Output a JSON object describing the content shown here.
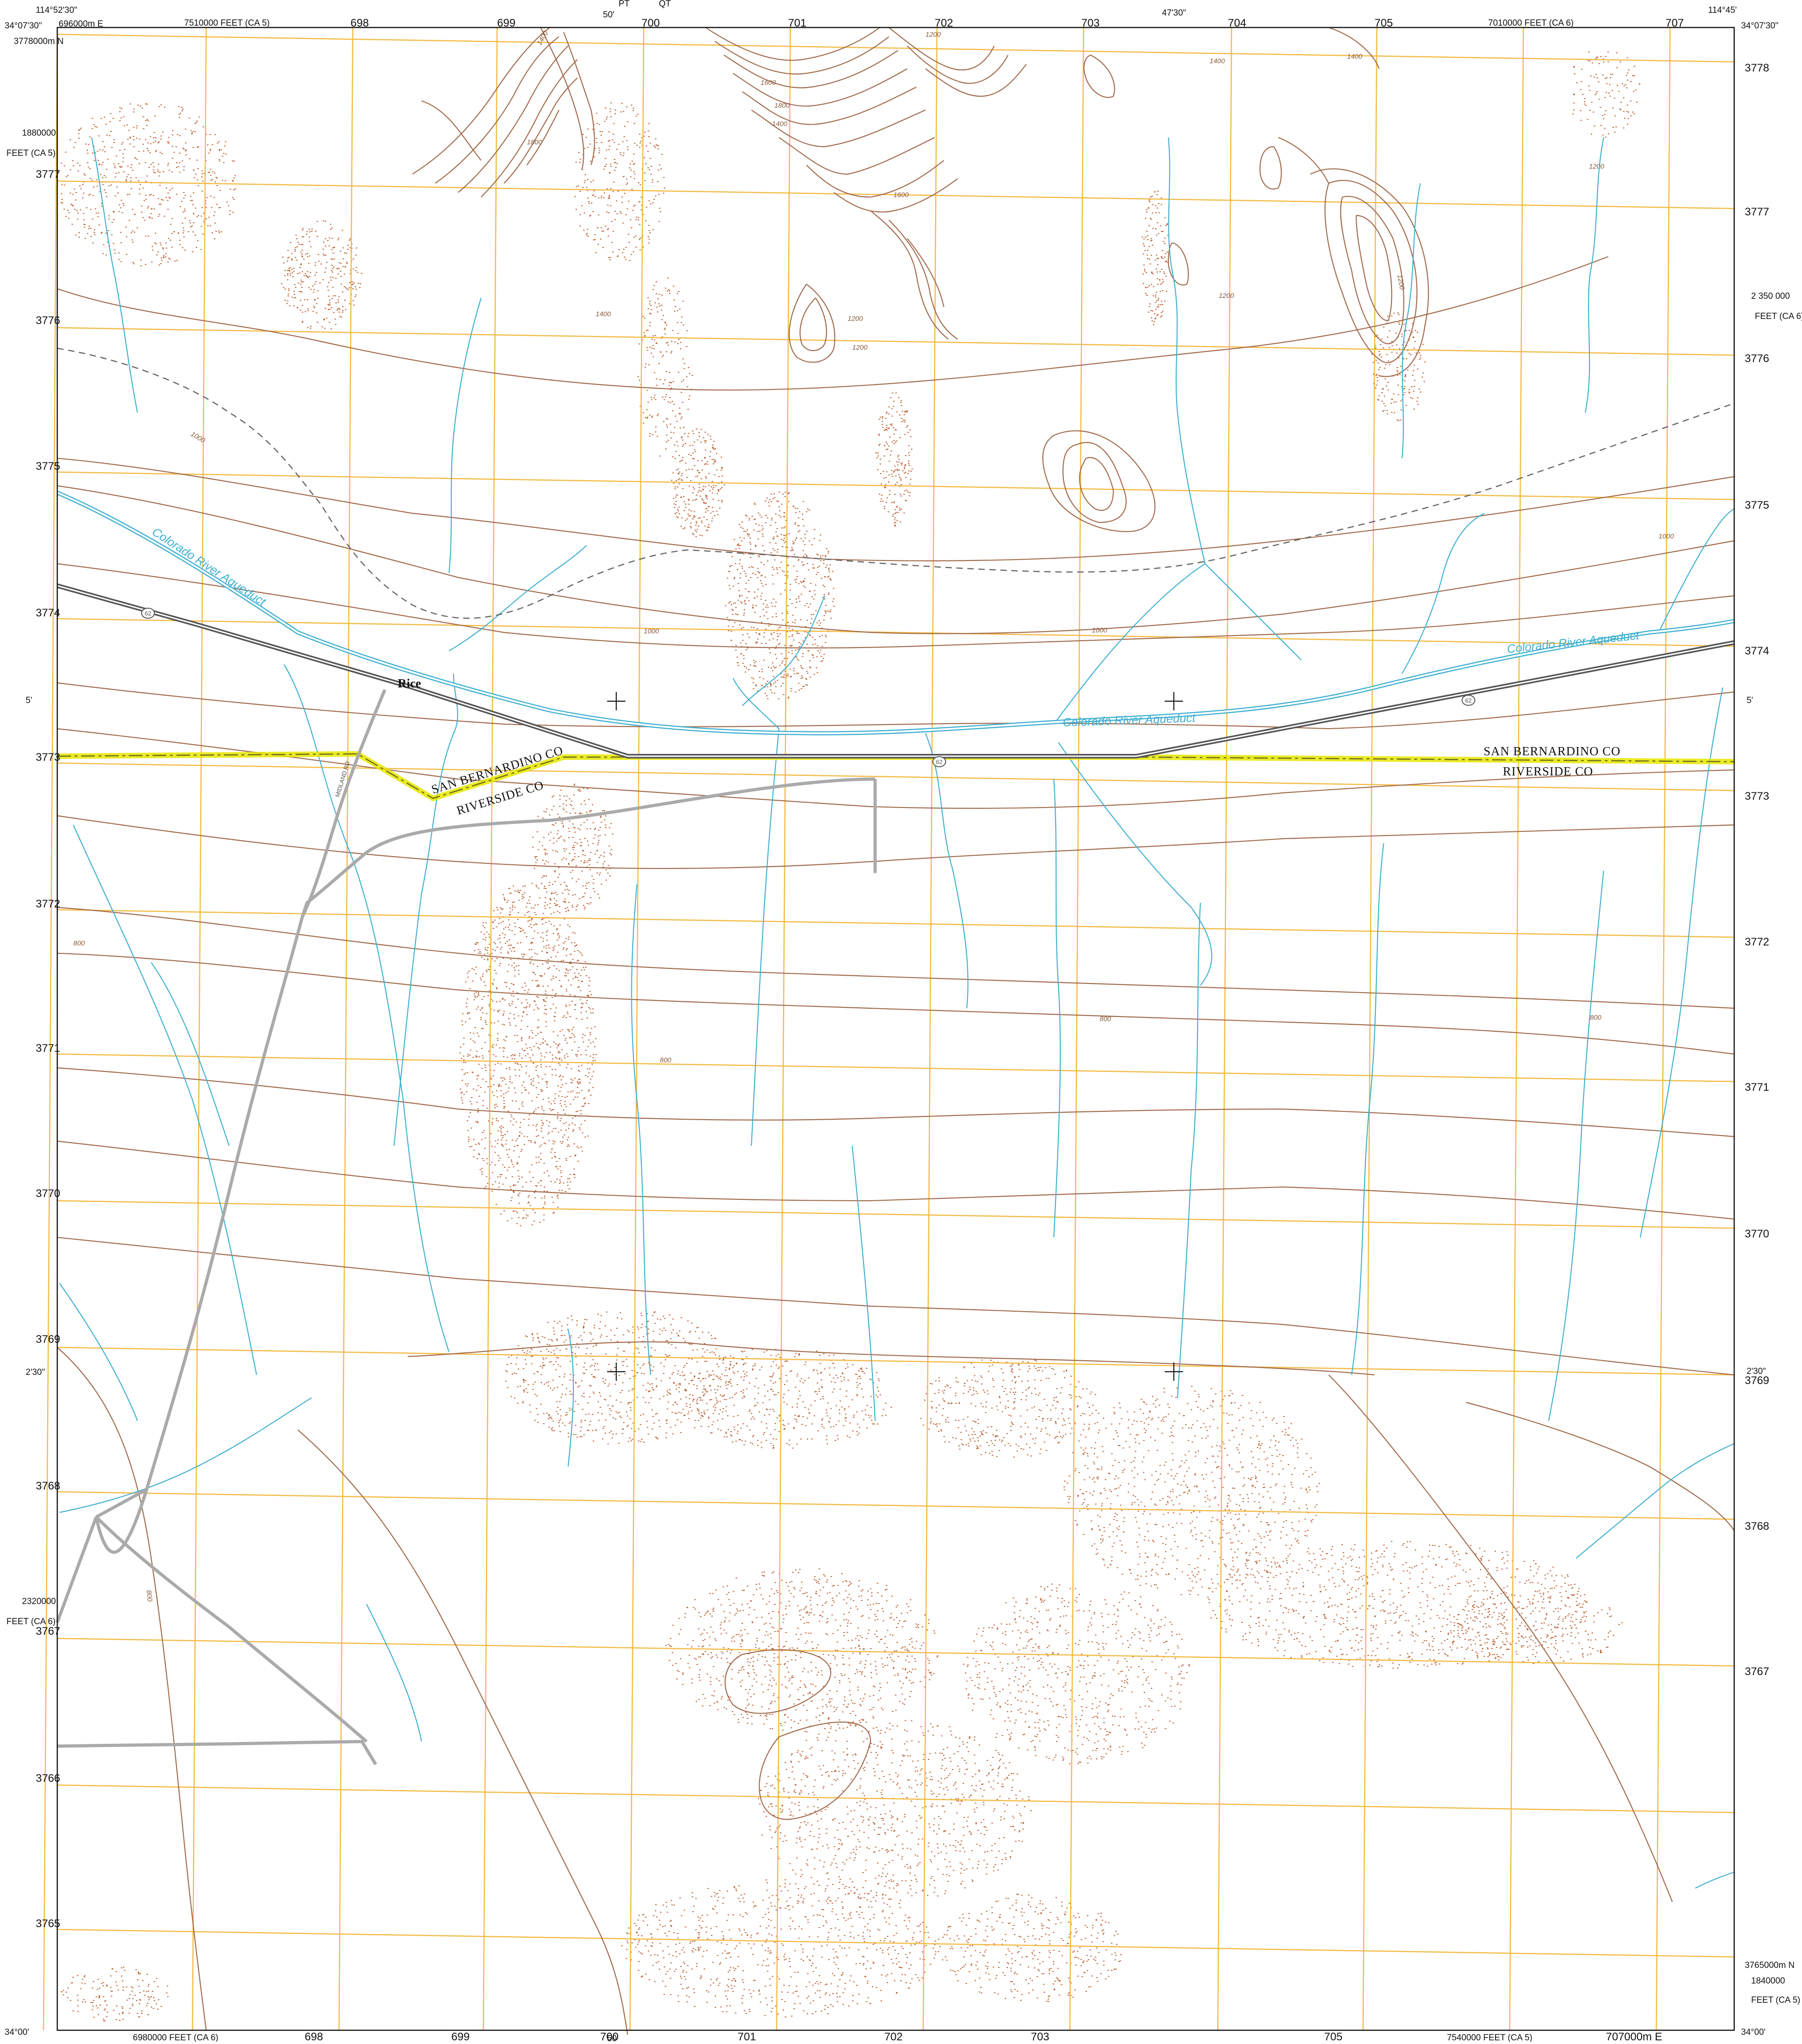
{
  "map": {
    "corners": {
      "top_left_lon": "114°52'30\"",
      "top_left_lat": "34°07'30\"",
      "top_right_lon": "114°45'",
      "top_right_lat": "34°07'30\"",
      "bottom_left_lat": "34°00'",
      "bottom_right_lat": "34°00'"
    },
    "top_ticks": {
      "lon_50": "50'",
      "lon_47_30": "47'30\"",
      "state_plane_left": "7510000 FEET (CA 5)",
      "state_plane_right": "7010000 FEET (CA 6)",
      "utm_first": "696000m E",
      "utm": [
        "698",
        "699",
        "700",
        "701",
        "702",
        "703",
        "704",
        "705",
        "707"
      ],
      "pt": "PT",
      "qt": "QT"
    },
    "bottom_ticks": {
      "state_plane_left": "6980000 FEET (CA 6)",
      "state_plane_right": "7540000 FEET (CA 5)",
      "utm": [
        "698",
        "699",
        "700",
        "701",
        "702",
        "703",
        "705",
        "707000m E"
      ],
      "lon_50": "50'"
    },
    "left_ticks": {
      "north_first": "3778000m N",
      "northing": [
        "3777",
        "3776",
        "3775",
        "3774",
        "3773",
        "3772",
        "3771",
        "3770",
        "3769",
        "3768",
        "3767",
        "3766",
        "3765"
      ],
      "sp_top_value": "1880000",
      "sp_top_unit": "FEET (CA 5)",
      "sp_bottom_value": "2320000",
      "sp_bottom_unit": "FEET (CA 6)",
      "lat_5": "5'",
      "lat_2_30": "2'30\""
    },
    "right_ticks": {
      "northing": [
        "3778",
        "3777",
        "3776",
        "3775",
        "3774",
        "3773",
        "3772",
        "3771",
        "3770",
        "3769",
        "3768",
        "3767"
      ],
      "north_last": "3765000m N",
      "sp_top_value": "2 350 000",
      "sp_top_unit": "FEET (CA 6)",
      "sp_bottom_value": "1840000",
      "sp_bottom_unit": "FEET (CA 5)",
      "lat_5": "5'",
      "lat_2_30": "2'30\""
    },
    "labels": {
      "place_rice": "Rice",
      "county_sb_left": "SAN BERNARDINO CO",
      "county_riv_left": "RIVERSIDE CO",
      "county_sb_right": "SAN BERNARDINO CO",
      "county_riv_right": "RIVERSIDE CO",
      "aqueduct_1": "Colorado River Aqueduct",
      "aqueduct_2": "Colorado River Aqueduct",
      "aqueduct_3": "Colorado River Aqueduct",
      "route_62_a": "62",
      "route_62_b": "62",
      "route_62_c": "62",
      "railroad": "MIDLAND RD"
    },
    "contour_labels": [
      "1200",
      "1400",
      "1600",
      "1800",
      "1400",
      "1600",
      "1800",
      "1400",
      "1200",
      "1200",
      "1000",
      "1000",
      "1000",
      "1200",
      "1400",
      "1200",
      "1400",
      "1200",
      "1000",
      "800",
      "800",
      "800",
      "800",
      "800"
    ],
    "colors": {
      "contour": "#a0694a",
      "index_contour": "#8a5a3a",
      "water": "#3fb0d0",
      "grid": "#f5b942",
      "highway": "#555555",
      "road": "#aaaaaa",
      "county_line": "#d8d800",
      "sand_dots": "#b85a2a"
    }
  }
}
